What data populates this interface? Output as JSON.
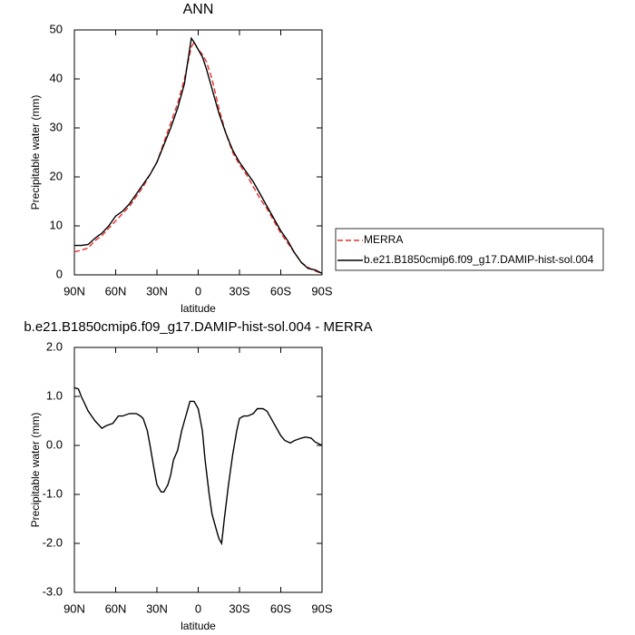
{
  "chart_data": [
    {
      "type": "line",
      "title": "ANN",
      "x_label": "latitude",
      "y_label": "Precipitable water (mm)",
      "x": [
        90,
        85,
        80,
        75,
        70,
        65,
        60,
        55,
        50,
        45,
        40,
        35,
        30,
        25,
        20,
        15,
        10,
        5,
        3,
        0,
        -3,
        -6,
        -10,
        -15,
        -20,
        -25,
        -30,
        -35,
        -40,
        -45,
        -50,
        -55,
        -60,
        -65,
        -70,
        -75,
        -80,
        -85,
        -90
      ],
      "series": [
        {
          "name": "MERRA",
          "color": "#e8302a",
          "dash": true,
          "values": [
            4.7,
            5,
            5.5,
            7,
            8,
            9.5,
            11,
            12.5,
            14,
            16,
            18,
            20.5,
            23,
            27,
            31,
            35,
            40,
            46.5,
            47.5,
            46,
            45,
            43.5,
            40,
            34,
            29,
            25,
            22.5,
            20.5,
            18,
            15.5,
            13.5,
            11,
            8.5,
            6.5,
            4.5,
            2.5,
            1.5,
            0.8,
            0.3
          ]
        },
        {
          "name": "b.e21.B1850cmip6.f09_g17.DAMIP-hist-sol.004",
          "color": "#000000",
          "dash": false,
          "values": [
            6,
            6,
            6.2,
            7.5,
            8.5,
            10,
            12,
            13,
            14.5,
            16.5,
            18.5,
            20.5,
            23,
            26.5,
            30,
            34,
            39,
            48.3,
            47.5,
            46,
            44.5,
            42,
            38,
            33,
            29,
            25.5,
            23,
            21,
            19,
            16.5,
            14,
            11.5,
            9,
            7,
            4.5,
            2.5,
            1.3,
            1,
            0.3
          ]
        }
      ],
      "xlim": [
        90,
        -90
      ],
      "xticks": [
        {
          "value": 90,
          "label": "90N"
        },
        {
          "value": 60,
          "label": "60N"
        },
        {
          "value": 30,
          "label": "30N"
        },
        0,
        {
          "value": -30,
          "label": "30S"
        },
        {
          "value": -60,
          "label": "60S"
        },
        {
          "value": -90,
          "label": "90S"
        }
      ],
      "ylim": [
        0,
        50
      ],
      "yticks": [
        0,
        10,
        20,
        30,
        40,
        50
      ],
      "legend": "right"
    },
    {
      "type": "line",
      "title": "b.e21.B1850cmip6.f09_g17.DAMIP-hist-sol.004 - MERRA",
      "x_label": "latitude",
      "y_label": "Precipitable water (mm)",
      "x": [
        90,
        87,
        85,
        80,
        75,
        70,
        67,
        62,
        58,
        55,
        50,
        45,
        42,
        40,
        37,
        35,
        32,
        30,
        27,
        25,
        22,
        20,
        18,
        15,
        12,
        10,
        8,
        6,
        3,
        0,
        -3,
        -5,
        -8,
        -10,
        -13,
        -15,
        -17,
        -19,
        -22,
        -25,
        -28,
        -30,
        -33,
        -36,
        -40,
        -43,
        -47,
        -50,
        -55,
        -60,
        -63,
        -67,
        -70,
        -75,
        -78,
        -82,
        -85,
        -90
      ],
      "series": [
        {
          "color": "#000000",
          "dash": false,
          "values": [
            1.18,
            1.15,
            1.0,
            0.7,
            0.5,
            0.35,
            0.4,
            0.45,
            0.6,
            0.6,
            0.65,
            0.65,
            0.6,
            0.55,
            0.3,
            0,
            -0.5,
            -0.8,
            -0.95,
            -0.95,
            -0.8,
            -0.6,
            -0.3,
            -0.1,
            0.3,
            0.5,
            0.7,
            0.9,
            0.9,
            0.75,
            0.3,
            -0.3,
            -1.0,
            -1.4,
            -1.7,
            -1.9,
            -2.0,
            -1.5,
            -0.8,
            -0.2,
            0.3,
            0.55,
            0.6,
            0.6,
            0.65,
            0.75,
            0.75,
            0.7,
            0.45,
            0.2,
            0.1,
            0.05,
            0.1,
            0.15,
            0.17,
            0.15,
            0.07,
            0
          ]
        }
      ],
      "xlim": [
        90,
        -90
      ],
      "xticks": [
        {
          "value": 90,
          "label": "90N"
        },
        {
          "value": 60,
          "label": "60N"
        },
        {
          "value": 30,
          "label": "30N"
        },
        0,
        {
          "value": -30,
          "label": "30S"
        },
        {
          "value": -60,
          "label": "60S"
        },
        {
          "value": -90,
          "label": "90S"
        }
      ],
      "ylim": [
        -3,
        2
      ],
      "yticks": [
        {
          "value": -3,
          "label": "-3.0"
        },
        {
          "value": -2,
          "label": "-2.0"
        },
        {
          "value": -1,
          "label": "-1.0"
        },
        {
          "value": 0,
          "label": "0.0"
        },
        {
          "value": 1,
          "label": "1.0"
        },
        {
          "value": 2,
          "label": "2.0"
        }
      ]
    }
  ]
}
